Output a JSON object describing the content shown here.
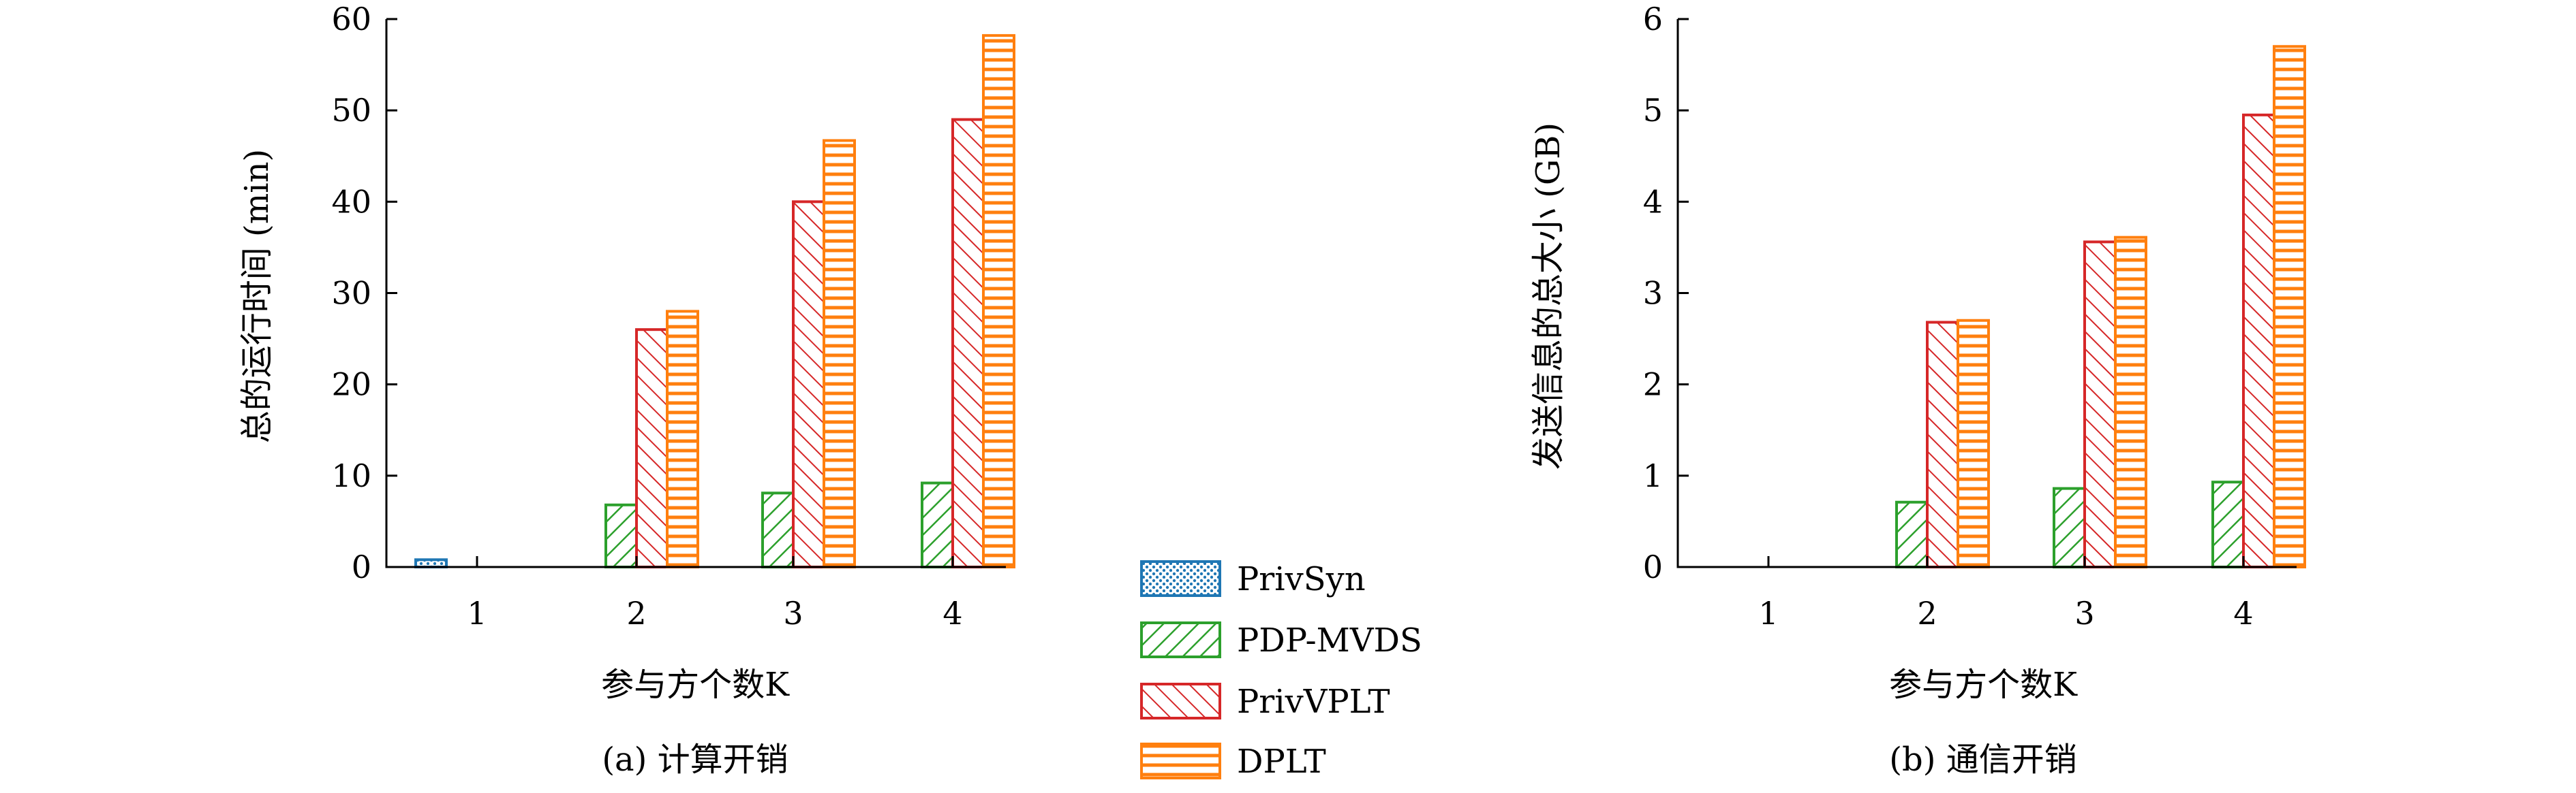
{
  "legend": [
    {
      "name": "PrivSyn",
      "color": "#1f77b4",
      "pattern": "dots"
    },
    {
      "name": "PDP-MVDS",
      "color": "#2ca02c",
      "pattern": "backslash"
    },
    {
      "name": "PrivVPLT",
      "color": "#d62728",
      "pattern": "slash"
    },
    {
      "name": "DPLT",
      "color": "#ff7f0e",
      "pattern": "horizontal"
    }
  ],
  "chart_data": [
    {
      "type": "bar",
      "caption": "(a) 计算开销",
      "xlabel": "参与方个数K",
      "ylabel": "总的运行时间 (min)",
      "categories": [
        "1",
        "2",
        "3",
        "4"
      ],
      "ylim": [
        0,
        60
      ],
      "yticks": [
        0,
        10,
        20,
        30,
        40,
        50,
        60
      ],
      "series": [
        {
          "name": "PrivSyn",
          "values": [
            0.8,
            null,
            null,
            null
          ]
        },
        {
          "name": "PDP-MVDS",
          "values": [
            0,
            6.8,
            8.1,
            9.2
          ]
        },
        {
          "name": "PrivVPLT",
          "values": [
            0,
            26.0,
            40.0,
            49.0
          ]
        },
        {
          "name": "DPLT",
          "values": [
            0,
            28.0,
            46.7,
            58.2
          ]
        }
      ]
    },
    {
      "type": "bar",
      "caption": "(b) 通信开销",
      "xlabel": "参与方个数K",
      "ylabel": "发送信息的总大小 (GB)",
      "categories": [
        "1",
        "2",
        "3",
        "4"
      ],
      "ylim": [
        0,
        6
      ],
      "yticks": [
        0,
        1,
        2,
        3,
        4,
        5,
        6
      ],
      "series": [
        {
          "name": "PrivSyn",
          "values": [
            0,
            null,
            null,
            null
          ]
        },
        {
          "name": "PDP-MVDS",
          "values": [
            0,
            0.71,
            0.86,
            0.93
          ]
        },
        {
          "name": "PrivVPLT",
          "values": [
            0,
            2.68,
            3.56,
            4.95
          ]
        },
        {
          "name": "DPLT",
          "values": [
            0,
            2.7,
            3.61,
            5.7
          ]
        }
      ]
    }
  ]
}
